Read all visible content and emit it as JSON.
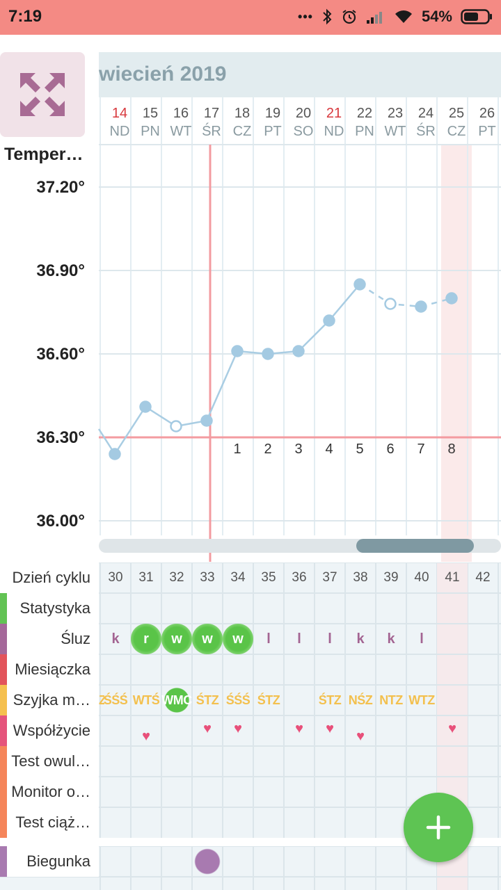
{
  "status_bar": {
    "time": "7:19",
    "battery": "54%",
    "dots": "•••"
  },
  "header": {
    "month_title": "wiecień 2019"
  },
  "days": [
    {
      "num": "14",
      "wd": "ND",
      "red": true
    },
    {
      "num": "15",
      "wd": "PN",
      "red": false
    },
    {
      "num": "16",
      "wd": "WT",
      "red": false
    },
    {
      "num": "17",
      "wd": "ŚR",
      "red": false
    },
    {
      "num": "18",
      "wd": "CZ",
      "red": false
    },
    {
      "num": "19",
      "wd": "PT",
      "red": false
    },
    {
      "num": "20",
      "wd": "SO",
      "red": false
    },
    {
      "num": "21",
      "wd": "ND",
      "red": true
    },
    {
      "num": "22",
      "wd": "PN",
      "red": false
    },
    {
      "num": "23",
      "wd": "WT",
      "red": false
    },
    {
      "num": "24",
      "wd": "ŚR",
      "red": false
    },
    {
      "num": "25",
      "wd": "CZ",
      "red": false
    },
    {
      "num": "26",
      "wd": "PT",
      "red": false
    }
  ],
  "chart_data": {
    "type": "line",
    "title": "Temper…",
    "y_ticks": [
      "37.20°",
      "36.90°",
      "36.60°",
      "36.30°",
      "36.00°"
    ],
    "ylim": [
      35.9,
      37.3
    ],
    "coverline": 36.3,
    "x": [
      "14",
      "15",
      "16",
      "17",
      "18",
      "19",
      "20",
      "21",
      "22",
      "23",
      "24",
      "25"
    ],
    "values": [
      36.24,
      36.41,
      36.34,
      36.36,
      36.61,
      36.6,
      36.61,
      36.72,
      36.85,
      36.78,
      36.77,
      36.8
    ],
    "open_points": [
      "16",
      "23"
    ],
    "high_temp_count_labels": [
      {
        "day": "18",
        "label": "1"
      },
      {
        "day": "19",
        "label": "2"
      },
      {
        "day": "20",
        "label": "3"
      },
      {
        "day": "21",
        "label": "4"
      },
      {
        "day": "22",
        "label": "5"
      },
      {
        "day": "23",
        "label": "6"
      },
      {
        "day": "24",
        "label": "7"
      },
      {
        "day": "25",
        "label": "8"
      }
    ],
    "ovulation_day": "17",
    "highlighted_day": "25",
    "colors": {
      "line": "#a9cde3",
      "point": "#a4cae2",
      "coverline": "#f39ba0",
      "highlight": "#fbeaea"
    }
  },
  "rows": [
    {
      "label": "Dzień cyklu",
      "color": "#ffffff"
    },
    {
      "label": "Statystyka",
      "color": "#62c354"
    },
    {
      "label": "Śluz",
      "color": "#a5689a"
    },
    {
      "label": "Miesiączka",
      "color": "#e2545b"
    },
    {
      "label": "Szyjka m…",
      "color": "#f5c04f"
    },
    {
      "label": "Współżycie",
      "color": "#e5547c"
    },
    {
      "label": "Test owul…",
      "color": "#f5855a"
    },
    {
      "label": "Monitor o…",
      "color": "#f5855a"
    },
    {
      "label": "Test ciąż…",
      "color": "#f5855a"
    },
    {
      "label": "Biegunka",
      "color": "#a87ab0"
    }
  ],
  "cycle_days": [
    "30",
    "31",
    "32",
    "33",
    "34",
    "35",
    "36",
    "37",
    "38",
    "39",
    "40",
    "41",
    "42"
  ],
  "sluz": [
    "k",
    "r",
    "w",
    "w",
    "w",
    "l",
    "l",
    "l",
    "k",
    "k",
    "l",
    "",
    ""
  ],
  "sluz_marked": [
    false,
    true,
    true,
    true,
    true,
    false,
    false,
    false,
    false,
    false,
    false,
    false,
    false
  ],
  "szyjka": [
    "ŚŚŚ",
    "WTŚ",
    "WMC",
    "ŚTZ",
    "ŚŚŚ",
    "ŚTZ",
    "",
    "ŚTZ",
    "NŚZ",
    "NTZ",
    "WTZ",
    "",
    ""
  ],
  "szyjka_prefix": "Z",
  "heart": "♥",
  "fab": {
    "label": "+"
  }
}
